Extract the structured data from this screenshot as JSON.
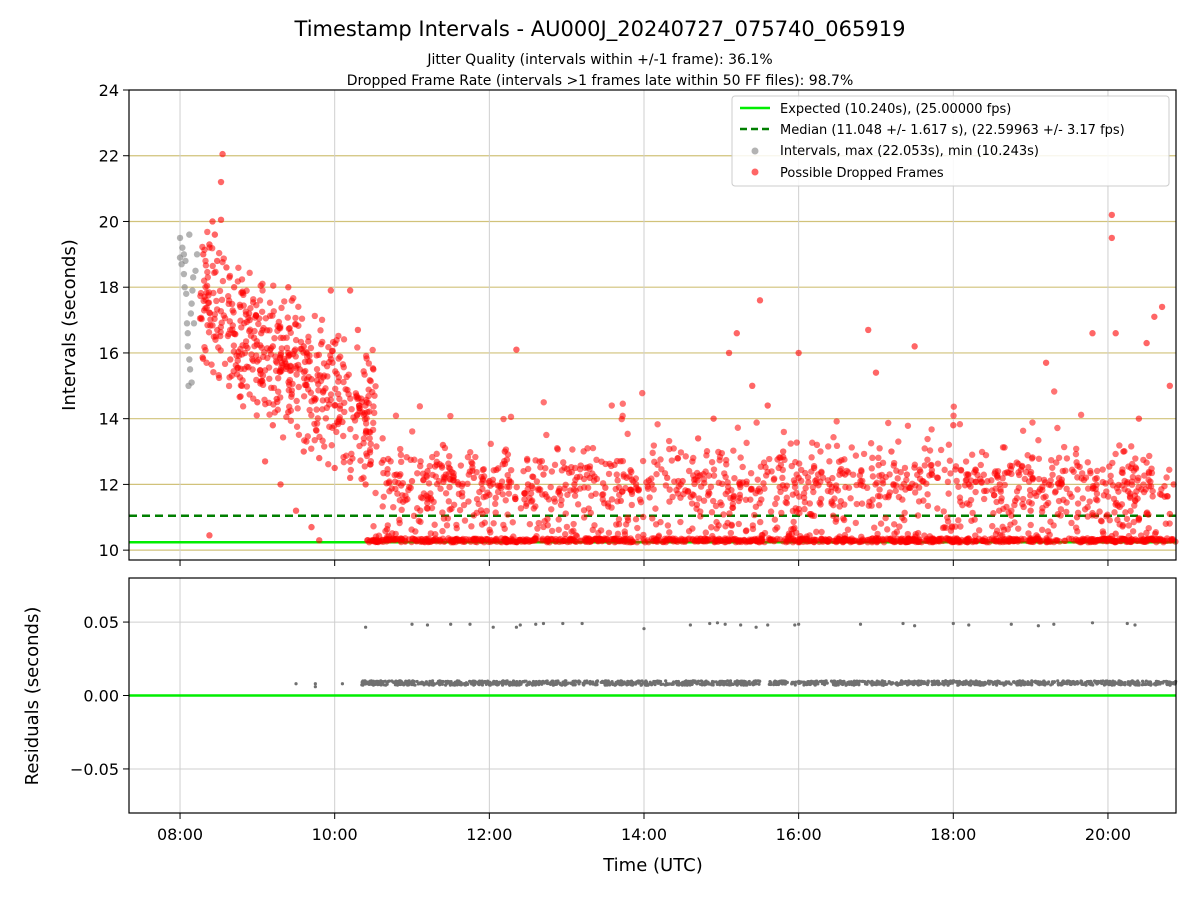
{
  "chart_data": {
    "type": "scatter",
    "title": "Timestamp Intervals - AU000J_20240727_075740_065919",
    "subtitle_1": "Jitter Quality (intervals within +/-1 frame): 36.1%",
    "subtitle_2": "Dropped Frame Rate (intervals >1 frames late within 50 FF files): 98.7%",
    "xlabel": "Time (UTC)",
    "x_ticks": [
      "08:00",
      "10:00",
      "12:00",
      "14:00",
      "16:00",
      "18:00",
      "20:00"
    ],
    "x_range_hours": [
      7.34,
      20.88
    ],
    "top_panel": {
      "ylabel": "Intervals (seconds)",
      "ylim": [
        9.7,
        24
      ],
      "y_ticks": [
        "10",
        "12",
        "14",
        "16",
        "18",
        "20",
        "22",
        "24"
      ],
      "horizontal_grid_color": "#d1c27a",
      "vertical_grid": true,
      "legend_placement": "top-right",
      "legend": [
        {
          "label": "Expected (10.240s), (25.00000 fps)",
          "style": "solid-line",
          "color": "#00ee00"
        },
        {
          "label": "Median (11.048 +/- 1.617 s), (22.59963 +/- 3.17 fps)",
          "style": "dashed-line",
          "color": "#007f00"
        },
        {
          "label": "Intervals, max (22.053s), min (10.243s)",
          "style": "marker",
          "color": "#808080"
        },
        {
          "label": "Possible Dropped Frames",
          "style": "marker",
          "color": "#ff0000"
        }
      ],
      "expected_interval": 10.24,
      "median_interval": 11.048,
      "series": [
        {
          "name": "Intervals, max (22.053s), min (10.243s)",
          "color": "#808080",
          "points": [
            [
              8.0,
              19.5
            ],
            [
              8.0,
              18.9
            ],
            [
              8.02,
              18.7
            ],
            [
              8.03,
              19.2
            ],
            [
              8.05,
              18.4
            ],
            [
              8.06,
              18.0
            ],
            [
              8.08,
              17.8
            ],
            [
              8.1,
              16.6
            ],
            [
              8.1,
              16.2
            ],
            [
              8.12,
              15.8
            ],
            [
              8.13,
              15.5
            ],
            [
              8.15,
              15.1
            ],
            [
              8.15,
              17.5
            ],
            [
              8.17,
              18.3
            ],
            [
              8.18,
              16.9
            ],
            [
              8.2,
              18.5
            ],
            [
              8.22,
              19.0
            ],
            [
              8.05,
              19.0
            ],
            [
              8.07,
              18.8
            ],
            [
              8.12,
              19.6
            ],
            [
              8.14,
              17.2
            ],
            [
              8.16,
              17.9
            ],
            [
              8.09,
              16.9
            ],
            [
              8.11,
              15.0
            ]
          ]
        },
        {
          "name": "Possible Dropped Frames",
          "color": "#ff0000",
          "notes": "representative sample of ~3000 plotted points",
          "points": [
            [
              8.55,
              22.05
            ],
            [
              8.53,
              21.2
            ],
            [
              8.53,
              20.05
            ],
            [
              8.42,
              20.0
            ],
            [
              8.45,
              19.6
            ],
            [
              8.38,
              19.3
            ],
            [
              8.3,
              19.0
            ],
            [
              8.48,
              18.8
            ],
            [
              8.6,
              18.6
            ],
            [
              8.7,
              18.0
            ],
            [
              8.78,
              17.4
            ],
            [
              8.9,
              17.0
            ],
            [
              9.05,
              16.6
            ],
            [
              9.2,
              16.2
            ],
            [
              9.4,
              16.0
            ],
            [
              9.55,
              15.5
            ],
            [
              9.7,
              15.2
            ],
            [
              9.85,
              14.8
            ],
            [
              10.0,
              14.4
            ],
            [
              10.1,
              13.9
            ],
            [
              10.2,
              17.9
            ],
            [
              9.4,
              18.0
            ],
            [
              9.6,
              16.2
            ],
            [
              8.65,
              15.8
            ],
            [
              8.8,
              15.0
            ],
            [
              9.0,
              14.5
            ],
            [
              9.2,
              13.8
            ],
            [
              9.4,
              14.2
            ],
            [
              9.6,
              13.0
            ],
            [
              9.8,
              12.8
            ],
            [
              10.0,
              12.5
            ],
            [
              10.2,
              12.2
            ],
            [
              10.4,
              12.0
            ],
            [
              9.95,
              17.9
            ],
            [
              10.3,
              16.7
            ],
            [
              10.5,
              15.5
            ],
            [
              9.3,
              12.0
            ],
            [
              9.5,
              11.2
            ],
            [
              9.7,
              10.7
            ],
            [
              9.8,
              10.3
            ],
            [
              10.5,
              10.3
            ],
            [
              8.38,
              10.45
            ],
            [
              9.1,
              12.7
            ],
            [
              9.25,
              14.6
            ],
            [
              10.8,
              12.3
            ],
            [
              11.0,
              12.1
            ],
            [
              11.2,
              12.4
            ],
            [
              11.4,
              13.2
            ],
            [
              11.6,
              12.0
            ],
            [
              11.8,
              12.2
            ],
            [
              12.0,
              12.1
            ],
            [
              12.2,
              13.0
            ],
            [
              12.35,
              16.1
            ],
            [
              12.5,
              12.0
            ],
            [
              12.7,
              12.3
            ],
            [
              12.9,
              11.8
            ],
            [
              13.1,
              12.0
            ],
            [
              13.3,
              12.2
            ],
            [
              13.5,
              11.9
            ],
            [
              13.7,
              11.5
            ],
            [
              13.9,
              11.9
            ],
            [
              14.1,
              12.0
            ],
            [
              14.3,
              12.2
            ],
            [
              14.5,
              12.1
            ],
            [
              14.7,
              13.4
            ],
            [
              14.9,
              14.0
            ],
            [
              15.1,
              16.0
            ],
            [
              15.2,
              16.6
            ],
            [
              15.5,
              17.6
            ],
            [
              15.4,
              15.0
            ],
            [
              15.6,
              14.4
            ],
            [
              15.8,
              13.0
            ],
            [
              16.0,
              12.2
            ],
            [
              16.0,
              16.0
            ],
            [
              16.2,
              12.5
            ],
            [
              16.4,
              12.0
            ],
            [
              16.6,
              12.3
            ],
            [
              16.8,
              12.1
            ],
            [
              16.9,
              16.7
            ],
            [
              17.0,
              15.4
            ],
            [
              17.2,
              13.0
            ],
            [
              17.4,
              12.3
            ],
            [
              17.6,
              12.1
            ],
            [
              17.8,
              12.2
            ],
            [
              17.5,
              16.2
            ],
            [
              18.0,
              13.8
            ],
            [
              18.2,
              12.0
            ],
            [
              18.4,
              11.8
            ],
            [
              18.6,
              12.0
            ],
            [
              18.8,
              11.5
            ],
            [
              19.0,
              11.2
            ],
            [
              19.2,
              15.7
            ],
            [
              19.4,
              12.0
            ],
            [
              19.6,
              11.0
            ],
            [
              19.8,
              16.6
            ],
            [
              20.05,
              20.2
            ],
            [
              20.05,
              19.5
            ],
            [
              20.1,
              16.6
            ],
            [
              20.2,
              13.0
            ],
            [
              20.3,
              12.5
            ],
            [
              20.4,
              14.0
            ],
            [
              20.5,
              16.3
            ],
            [
              20.6,
              17.1
            ],
            [
              20.7,
              17.4
            ],
            [
              20.8,
              15.0
            ],
            [
              20.85,
              12.0
            ],
            [
              20.1,
              10.5
            ],
            [
              20.5,
              10.3
            ],
            [
              20.8,
              11.1
            ]
          ],
          "dense_band": {
            "y": 10.3,
            "x_from": 10.4,
            "x_to": 20.88
          }
        }
      ]
    },
    "bottom_panel": {
      "ylabel": "Residuals (seconds)",
      "ylim": [
        -0.08,
        0.08
      ],
      "y_ticks": [
        "−0.05",
        "0.00",
        "0.05"
      ],
      "reference_line": {
        "y": 0.0,
        "color": "#00ee00"
      },
      "series": [
        {
          "name": "Residuals",
          "color": "#707070",
          "points": [
            [
              9.5,
              0.008
            ],
            [
              9.75,
              0.008
            ],
            [
              9.75,
              0.006
            ],
            [
              10.1,
              0.008
            ],
            [
              10.4,
              0.0465
            ],
            [
              11.0,
              0.0485
            ],
            [
              11.2,
              0.048
            ],
            [
              11.5,
              0.0485
            ],
            [
              11.75,
              0.0485
            ],
            [
              12.05,
              0.0465
            ],
            [
              12.35,
              0.0465
            ],
            [
              12.4,
              0.048
            ],
            [
              12.6,
              0.0485
            ],
            [
              12.7,
              0.049
            ],
            [
              12.95,
              0.049
            ],
            [
              13.2,
              0.049
            ],
            [
              14.0,
              0.0455
            ],
            [
              14.6,
              0.048
            ],
            [
              14.85,
              0.049
            ],
            [
              14.95,
              0.0495
            ],
            [
              15.05,
              0.0485
            ],
            [
              15.25,
              0.048
            ],
            [
              15.45,
              0.0465
            ],
            [
              15.6,
              0.048
            ],
            [
              15.95,
              0.048
            ],
            [
              16.0,
              0.0485
            ],
            [
              16.8,
              0.0485
            ],
            [
              17.35,
              0.049
            ],
            [
              17.5,
              0.0475
            ],
            [
              18.0,
              0.049
            ],
            [
              18.2,
              0.048
            ],
            [
              18.75,
              0.0485
            ],
            [
              19.1,
              0.0475
            ],
            [
              19.3,
              0.0485
            ],
            [
              19.8,
              0.0495
            ],
            [
              20.25,
              0.049
            ],
            [
              20.35,
              0.048
            ]
          ],
          "dense_band": {
            "y": 0.0085,
            "x_from": 10.35,
            "x_to": 20.88
          }
        }
      ]
    }
  }
}
